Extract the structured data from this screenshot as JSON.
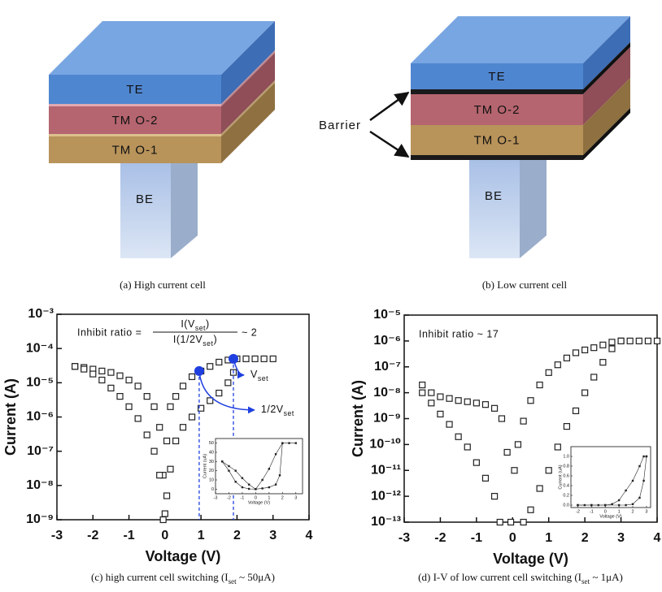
{
  "diagrams": [
    {
      "layers": [
        "TE",
        "TM O-2",
        "TM O-1"
      ],
      "pillar": "BE",
      "caption": "(a) High current cell"
    },
    {
      "layers": [
        "TE",
        "TM O-2",
        "TM O-1"
      ],
      "pillar": "BE",
      "annotation": "Barrier",
      "caption": "(b) Low current cell"
    }
  ],
  "chart_data": [
    {
      "type": "scatter",
      "log_y": true,
      "xlabel": "Voltage (V)",
      "ylabel": "Current (A)",
      "xlim": [
        -3,
        4
      ],
      "xticks": [
        -3,
        -2,
        -1,
        0,
        1,
        2,
        3,
        4
      ],
      "ylim": [
        1e-09,
        0.001
      ],
      "yticks": [
        {
          "value": 1e-09,
          "label": "10⁻⁹"
        },
        {
          "value": 1e-08,
          "label": "10⁻⁸"
        },
        {
          "value": 1e-07,
          "label": "10⁻⁷"
        },
        {
          "value": 1e-06,
          "label": "10⁻⁶"
        },
        {
          "value": 1e-05,
          "label": "10⁻⁵"
        },
        {
          "value": 0.0001,
          "label": "10⁻⁴"
        },
        {
          "value": 0.001,
          "label": "10⁻³"
        }
      ],
      "series": [
        {
          "color": "#222222",
          "x": [
            -2.5,
            -2.25,
            -2,
            -1.75,
            -1.5,
            -1.25,
            -1,
            -0.75,
            -0.5,
            -0.3,
            -0.15,
            -0.05,
            0,
            0.05,
            0.15,
            0.3,
            0.5,
            0.75,
            1,
            1.25,
            1.5,
            1.75,
            2,
            2.25,
            2.5,
            2.75,
            3
          ],
          "values": [
            3e-05,
            2.8e-05,
            2.5e-05,
            2.2e-05,
            2e-05,
            1.6e-05,
            1.2e-05,
            8e-06,
            4e-06,
            2e-06,
            5e-07,
            2e-08,
            1.5e-09,
            2e-07,
            2e-06,
            4e-06,
            8e-06,
            1.5e-05,
            2.2e-05,
            3e-05,
            4e-05,
            4.6e-05,
            5e-05,
            5e-05,
            5e-05,
            5e-05,
            5e-05
          ]
        },
        {
          "color": "#222222",
          "x": [
            -2.5,
            -2.25,
            -2,
            -1.75,
            -1.5,
            -1.25,
            -1,
            -0.75,
            -0.5,
            -0.3,
            -0.15,
            -0.05,
            0.05,
            0.15,
            0.3,
            0.5,
            0.75,
            1,
            1.25,
            1.5,
            1.75,
            1.9
          ],
          "values": [
            3e-05,
            2.5e-05,
            1.8e-05,
            1.2e-05,
            7e-06,
            4e-06,
            2e-06,
            9e-07,
            3e-07,
            1e-07,
            2e-08,
            1e-09,
            5e-09,
            3e-08,
            2e-07,
            5e-07,
            1e-06,
            1.8e-06,
            3e-06,
            5e-06,
            1e-05,
            2e-05
          ]
        }
      ],
      "highlights": {
        "color": "#1f3fdf",
        "points": [
          {
            "x": 0.95,
            "y": 2.2e-05,
            "label": [
              "1/2V",
              "set"
            ]
          },
          {
            "x": 1.9,
            "y": 5e-05,
            "label": [
              "V",
              "set"
            ]
          }
        ]
      },
      "annotation": {
        "lead": "Inhibit ratio =",
        "numerator": [
          "I(V",
          "set",
          ")"
        ],
        "denominator": [
          "I(1/2V",
          "set",
          ")"
        ],
        "tail": "~ 2"
      },
      "inset": {
        "xlabel": "Voltage (V)",
        "ylabel": "Current (uA)",
        "xlim": [
          -3,
          3.5
        ],
        "xticks": [
          -3,
          -2,
          -1,
          0,
          1,
          2,
          3
        ],
        "ylim": [
          -5,
          55
        ],
        "yticks": [
          0,
          10,
          20,
          30,
          40,
          50
        ],
        "series": [
          {
            "color": "#222222",
            "x": [
              -2.5,
              -2,
              -1.5,
              -1,
              -0.5,
              0,
              0.5,
              1,
              1.5,
              2,
              2.5,
              3
            ],
            "values": [
              30,
              25,
              20,
              12,
              5,
              0,
              10,
              22,
              38,
              50,
              50,
              50
            ]
          },
          {
            "color": "#222222",
            "x": [
              -2.5,
              -2,
              -1.5,
              -1,
              -0.5,
              0,
              0.5,
              1,
              1.5,
              1.8,
              2
            ],
            "values": [
              30,
              20,
              8,
              2,
              0.3,
              0,
              0.8,
              2,
              5,
              15,
              50
            ]
          }
        ]
      },
      "caption": [
        "(c) high current cell switching (I",
        "set",
        " ~ 50μA)"
      ]
    },
    {
      "type": "scatter",
      "log_y": true,
      "xlabel": "Voltage (V)",
      "ylabel": "Current (A)",
      "xlim": [
        -3,
        4
      ],
      "xticks": [
        -3,
        -2,
        -1,
        0,
        1,
        2,
        3,
        4
      ],
      "ylim": [
        1e-13,
        1e-05
      ],
      "yticks": [
        {
          "value": 1e-13,
          "label": "10⁻¹³"
        },
        {
          "value": 1e-12,
          "label": "10⁻¹²"
        },
        {
          "value": 1e-11,
          "label": "10⁻¹¹"
        },
        {
          "value": 1e-10,
          "label": "10⁻¹⁰"
        },
        {
          "value": 1e-09,
          "label": "10⁻⁹"
        },
        {
          "value": 1e-08,
          "label": "10⁻⁸"
        },
        {
          "value": 1e-07,
          "label": "10⁻⁷"
        },
        {
          "value": 1e-06,
          "label": "10⁻⁶"
        },
        {
          "value": 1e-05,
          "label": "10⁻⁵"
        }
      ],
      "series": [
        {
          "color": "#222222",
          "x": [
            -2.5,
            -2.25,
            -2,
            -1.75,
            -1.5,
            -1.25,
            -1,
            -0.75,
            -0.5,
            -0.3,
            -0.15,
            -0.05,
            0.05,
            0.15,
            0.3,
            0.5,
            0.75,
            1,
            1.25,
            1.5,
            1.75,
            2,
            2.25,
            2.5,
            2.75,
            3,
            3.25,
            3.5,
            3.75,
            4
          ],
          "values": [
            2e-08,
            1e-08,
            7e-09,
            6e-09,
            5e-09,
            4.5e-09,
            4e-09,
            3.5e-09,
            2.5e-09,
            1e-09,
            5e-11,
            1e-13,
            1e-11,
            1e-10,
            8e-10,
            5e-09,
            2e-08,
            6e-08,
            1.2e-07,
            2.2e-07,
            3.5e-07,
            4.5e-07,
            5.5e-07,
            7e-07,
            9e-07,
            1e-06,
            1e-06,
            1e-06,
            1e-06,
            1e-06
          ]
        },
        {
          "color": "#222222",
          "x": [
            -2.5,
            -2.25,
            -2,
            -1.75,
            -1.5,
            -1.25,
            -1,
            -0.75,
            -0.5,
            -0.35,
            0.3,
            0.5,
            0.75,
            1,
            1.25,
            1.5,
            1.75,
            2,
            2.25,
            2.5,
            2.75,
            3
          ],
          "values": [
            1e-08,
            4e-09,
            1.5e-09,
            6e-10,
            2e-10,
            8e-11,
            2e-11,
            5e-12,
            1e-12,
            1e-13,
            1e-13,
            3e-13,
            2e-12,
            1e-11,
            8e-11,
            5e-10,
            2e-09,
            1e-08,
            4e-08,
            1.5e-07,
            5e-07,
            1e-06
          ]
        }
      ],
      "annotation": {
        "lead": "Inhibit ratio ~ 17"
      },
      "inset": {
        "xlabel": "Voltage (V)",
        "ylabel": "Current (uA)",
        "xlim": [
          -2.5,
          3.3
        ],
        "xticks": [
          -2,
          -1,
          0,
          1,
          2,
          3
        ],
        "ylim": [
          -0.05,
          1.2
        ],
        "yticks": [
          {
            "value": 0,
            "label": "0.0"
          },
          {
            "value": 0.2,
            "label": "0.2"
          },
          {
            "value": 0.4,
            "label": "0.4"
          },
          {
            "value": 0.6,
            "label": "0.6"
          },
          {
            "value": 0.8,
            "label": "0.8"
          },
          {
            "value": 1,
            "label": "1.0"
          }
        ],
        "series": [
          {
            "color": "#222222",
            "x": [
              -2,
              -1.5,
              -1,
              -0.5,
              0,
              0.5,
              1,
              1.5,
              2,
              2.5,
              2.8,
              3
            ],
            "values": [
              0,
              0,
              0,
              0,
              0,
              0.02,
              0.1,
              0.3,
              0.5,
              0.8,
              1,
              1
            ]
          },
          {
            "color": "#222222",
            "x": [
              -2,
              -1,
              0,
              1,
              1.5,
              2,
              2.5,
              2.8,
              3
            ],
            "values": [
              0,
              0,
              0,
              0,
              0,
              0.02,
              0.15,
              0.5,
              1
            ]
          }
        ]
      },
      "caption": [
        "(d) I-V of low current cell switching (I",
        "set",
        " ~ 1μA)"
      ]
    }
  ]
}
